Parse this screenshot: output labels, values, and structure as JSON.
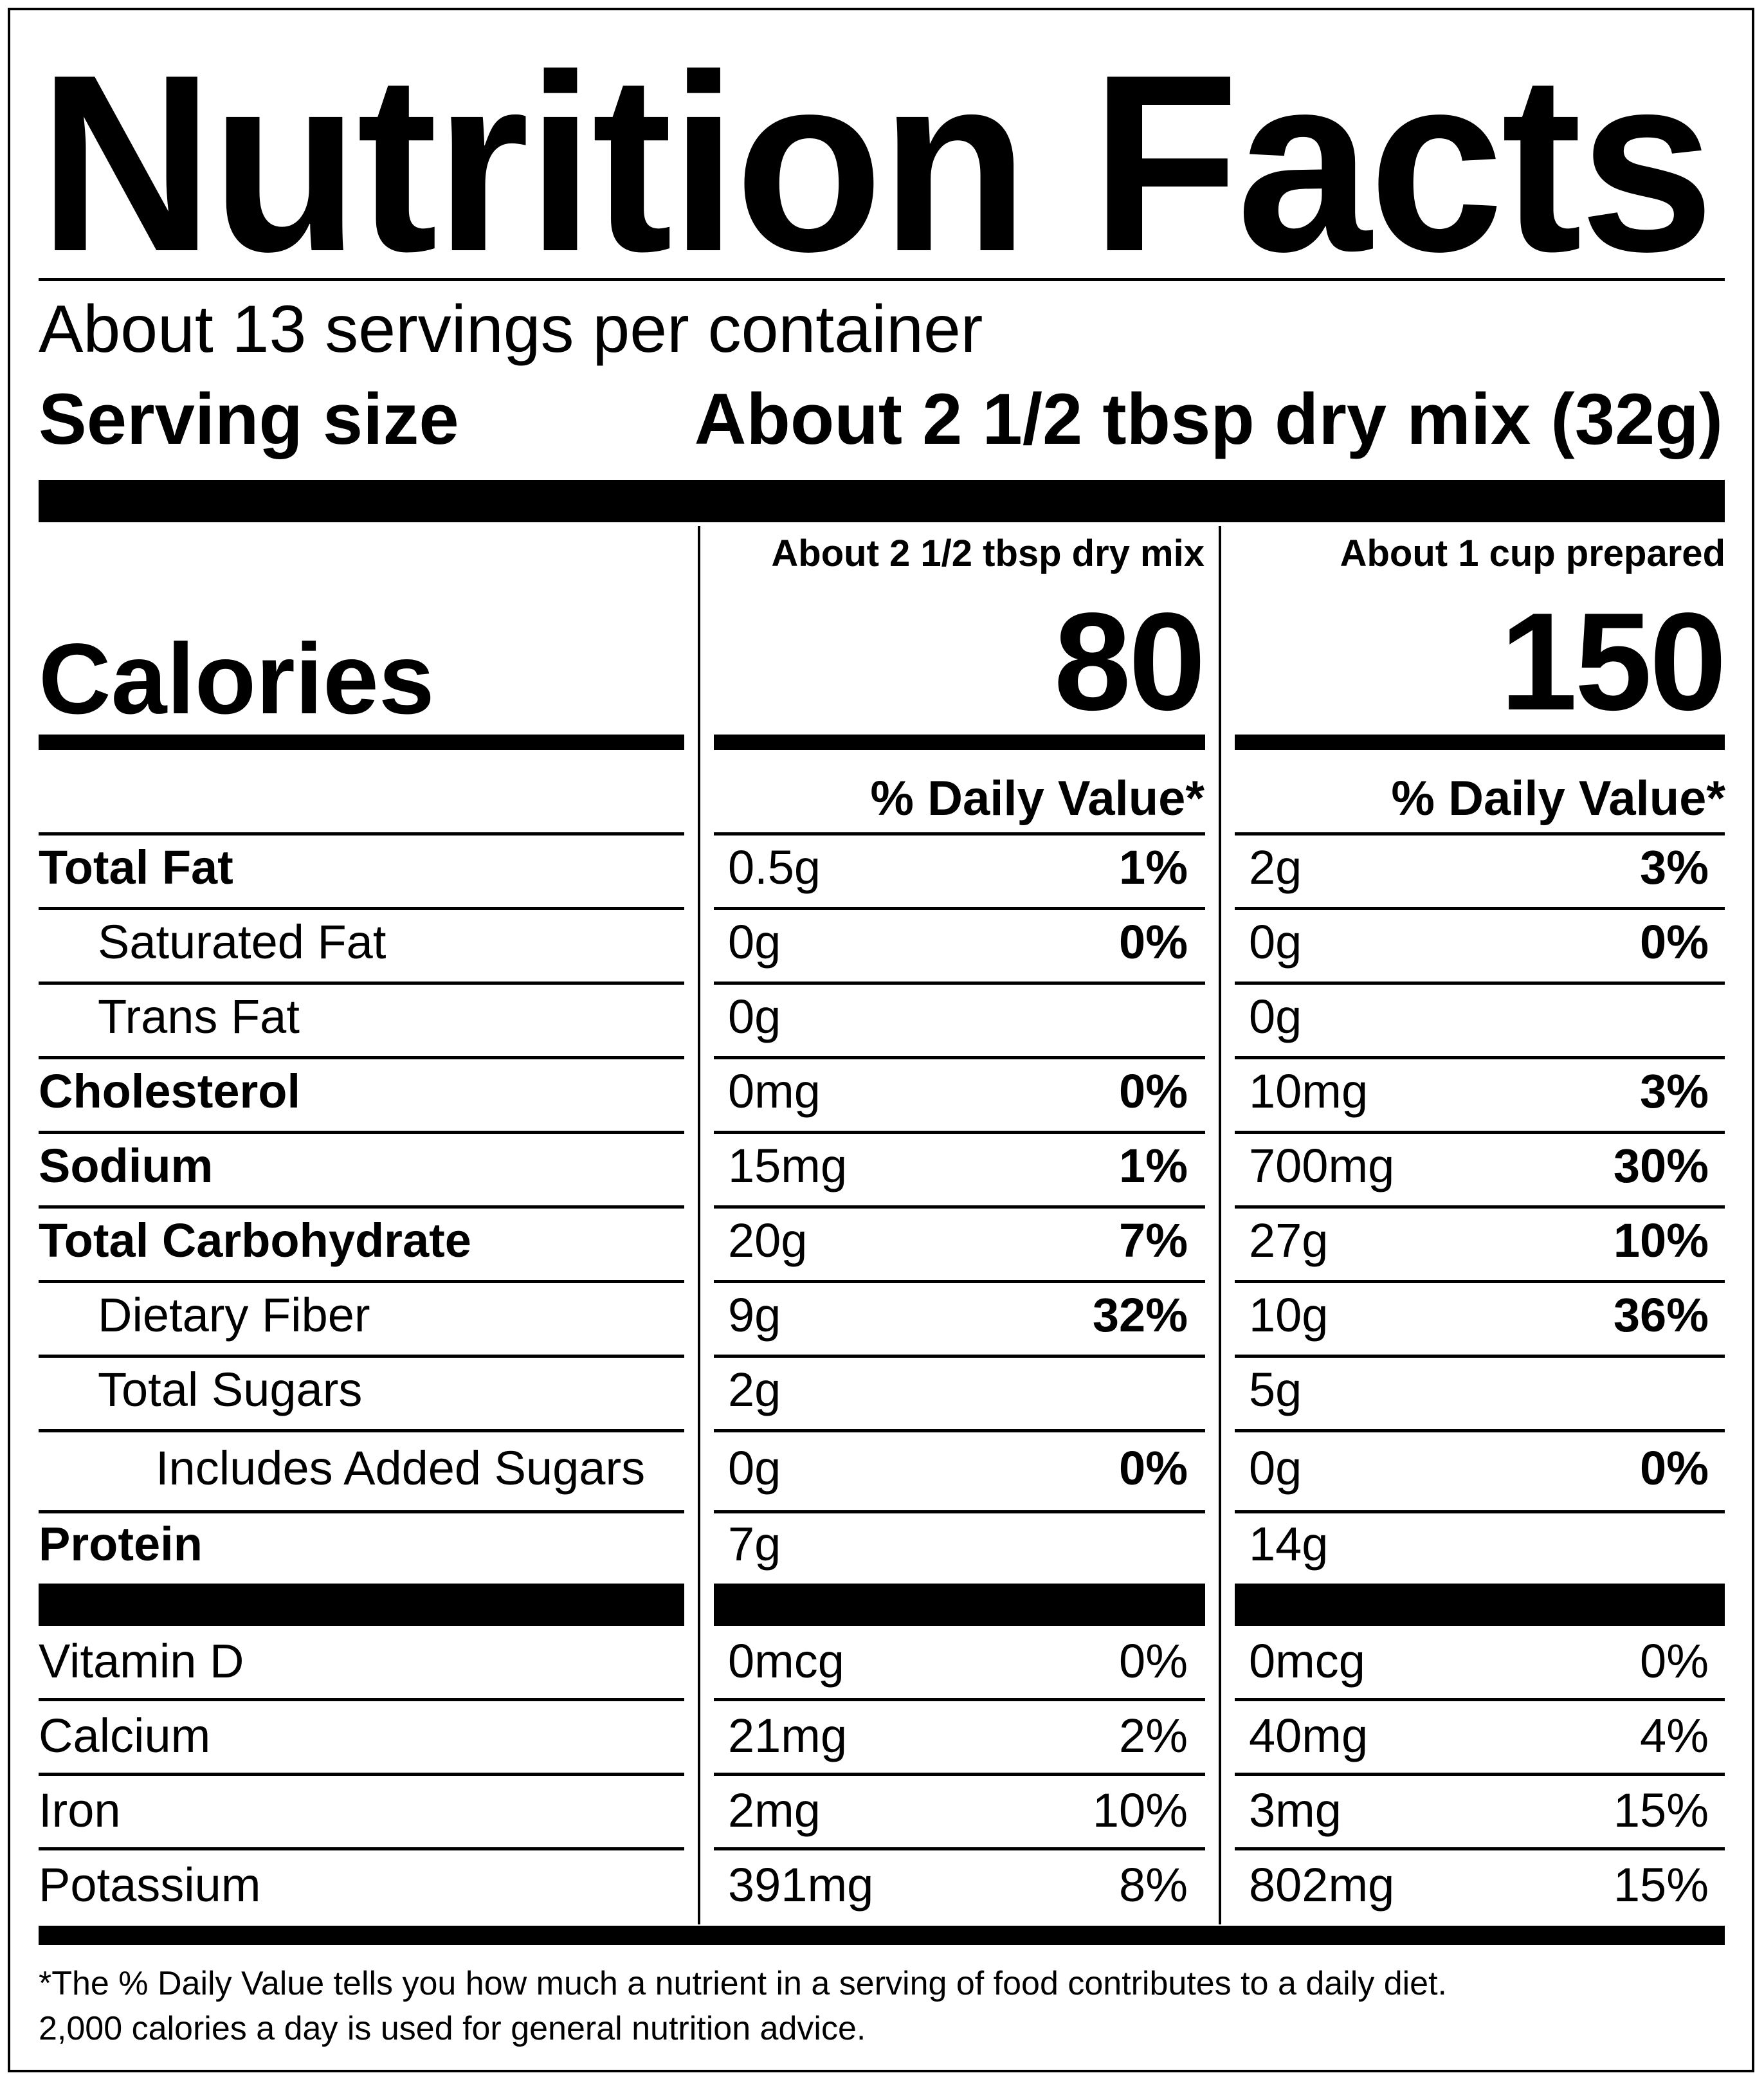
{
  "title": "Nutrition Facts",
  "servings_per_container": "About 13 servings per container",
  "serving_size": {
    "label": "Serving size",
    "value": "About 2 1/2 tbsp dry mix (32g)"
  },
  "columns": [
    {
      "header": "About 2 1/2 tbsp dry mix",
      "calories": "80",
      "dv_header": "% Daily Value*"
    },
    {
      "header": "About 1 cup prepared",
      "calories": "150",
      "dv_header": "% Daily Value*"
    }
  ],
  "calories_label": "Calories",
  "nutrients": [
    {
      "name": "Total Fat",
      "bold": true,
      "indent": 0,
      "dry": {
        "amount": "0.5g",
        "dv": "1%"
      },
      "prepared": {
        "amount": "2g",
        "dv": "3%"
      }
    },
    {
      "name": "Saturated Fat",
      "bold": false,
      "indent": 1,
      "dry": {
        "amount": "0g",
        "dv": "0%"
      },
      "prepared": {
        "amount": "0g",
        "dv": "0%"
      }
    },
    {
      "name": "Trans Fat",
      "bold": false,
      "indent": 1,
      "dry": {
        "amount": "0g",
        "dv": ""
      },
      "prepared": {
        "amount": "0g",
        "dv": ""
      }
    },
    {
      "name": "Cholesterol",
      "bold": true,
      "indent": 0,
      "dry": {
        "amount": "0mg",
        "dv": "0%"
      },
      "prepared": {
        "amount": "10mg",
        "dv": "3%"
      }
    },
    {
      "name": "Sodium",
      "bold": true,
      "indent": 0,
      "dry": {
        "amount": "15mg",
        "dv": "1%"
      },
      "prepared": {
        "amount": "700mg",
        "dv": "30%"
      }
    },
    {
      "name": "Total Carbohydrate",
      "bold": true,
      "indent": 0,
      "dry": {
        "amount": "20g",
        "dv": "7%"
      },
      "prepared": {
        "amount": "27g",
        "dv": "10%"
      }
    },
    {
      "name": "Dietary Fiber",
      "bold": false,
      "indent": 1,
      "dry": {
        "amount": "9g",
        "dv": "32%"
      },
      "prepared": {
        "amount": "10g",
        "dv": "36%"
      }
    },
    {
      "name": "Total Sugars",
      "bold": false,
      "indent": 1,
      "dry": {
        "amount": "2g",
        "dv": ""
      },
      "prepared": {
        "amount": "5g",
        "dv": ""
      }
    },
    {
      "name": "Includes Added Sugars",
      "bold": false,
      "indent": 2,
      "dry": {
        "amount": "0g",
        "dv": "0%"
      },
      "prepared": {
        "amount": "0g",
        "dv": "0%"
      }
    },
    {
      "name": "Protein",
      "bold": true,
      "indent": 0,
      "dry": {
        "amount": "7g",
        "dv": ""
      },
      "prepared": {
        "amount": "14g",
        "dv": ""
      }
    }
  ],
  "vitamins": [
    {
      "name": "Vitamin D",
      "dry": {
        "amount": "0mcg",
        "dv": "0%"
      },
      "prepared": {
        "amount": "0mcg",
        "dv": "0%"
      }
    },
    {
      "name": "Calcium",
      "dry": {
        "amount": "21mg",
        "dv": "2%"
      },
      "prepared": {
        "amount": "40mg",
        "dv": "4%"
      }
    },
    {
      "name": "Iron",
      "dry": {
        "amount": "2mg",
        "dv": "10%"
      },
      "prepared": {
        "amount": "3mg",
        "dv": "15%"
      }
    },
    {
      "name": "Potassium",
      "dry": {
        "amount": "391mg",
        "dv": "8%"
      },
      "prepared": {
        "amount": "802mg",
        "dv": "15%"
      }
    }
  ],
  "footnote": [
    "*The % Daily Value tells you how much a nutrient in a serving of food contributes to a daily diet.",
    "2,000 calories a day is used for general nutrition advice."
  ]
}
